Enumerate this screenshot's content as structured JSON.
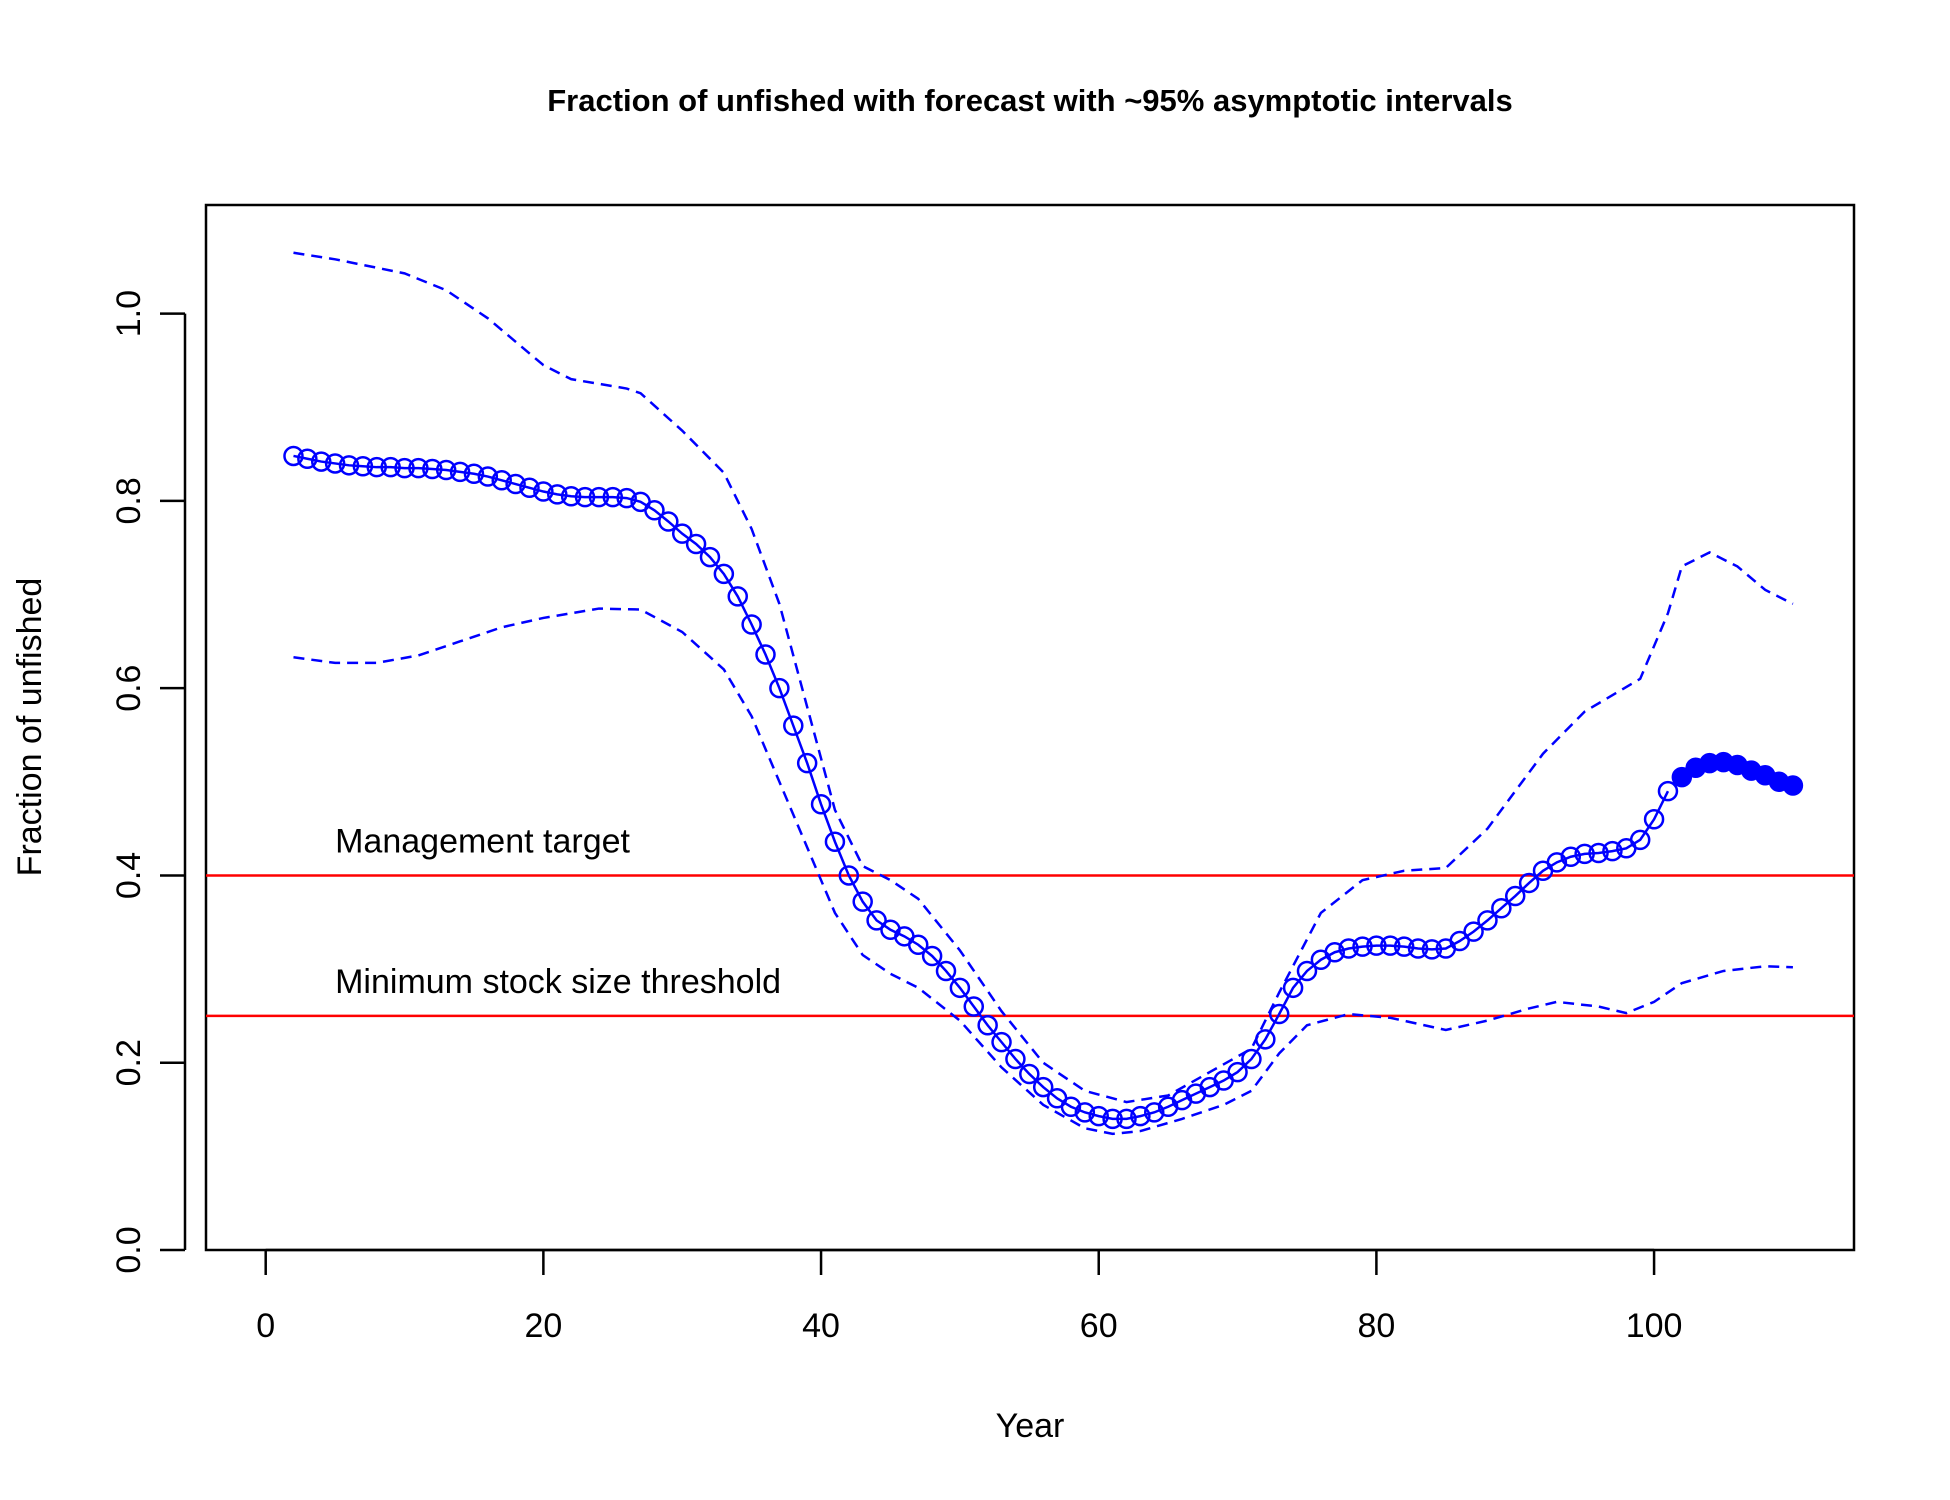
{
  "chart_data": {
    "type": "line",
    "title": "Fraction of unfished with forecast with ~95% asymptotic intervals",
    "xlabel": "Year",
    "ylabel": "Fraction of unfished",
    "xlim": [
      -4.3,
      114.4
    ],
    "ylim": [
      0,
      1.116
    ],
    "xticks": [
      0,
      20,
      40,
      60,
      80,
      100
    ],
    "yticks": [
      {
        "value": 0,
        "label": "0.0"
      },
      0.2,
      0.4,
      0.6,
      0.8,
      {
        "value": 1,
        "label": "1.0"
      }
    ],
    "series": [
      {
        "color": "#0000ff",
        "line": "solid",
        "marker": "open",
        "x": [
          2,
          3,
          4,
          5,
          6,
          7,
          8,
          9,
          10,
          11,
          12,
          13,
          14,
          15,
          16,
          17,
          18,
          19,
          20,
          21,
          22,
          23,
          24,
          25,
          26,
          27,
          28,
          29,
          30,
          31,
          32,
          33,
          34,
          35,
          36,
          37,
          38,
          39,
          40,
          41,
          42,
          43,
          44,
          45,
          46,
          47,
          48,
          49,
          50,
          51,
          52,
          53,
          54,
          55,
          56,
          57,
          58,
          59,
          60,
          61,
          62,
          63,
          64,
          65,
          66,
          67,
          68,
          69,
          70,
          71,
          72,
          73,
          74,
          75,
          76,
          77,
          78,
          79,
          80,
          81,
          82,
          83,
          84,
          85,
          86,
          87,
          88,
          89,
          90,
          91,
          92,
          93,
          94,
          95,
          96,
          97,
          98,
          99,
          100,
          101
        ],
        "values": [
          0.848,
          0.845,
          0.842,
          0.84,
          0.838,
          0.837,
          0.836,
          0.836,
          0.835,
          0.835,
          0.834,
          0.833,
          0.831,
          0.829,
          0.826,
          0.822,
          0.818,
          0.814,
          0.81,
          0.807,
          0.805,
          0.804,
          0.804,
          0.804,
          0.803,
          0.799,
          0.79,
          0.778,
          0.765,
          0.754,
          0.74,
          0.722,
          0.698,
          0.668,
          0.636,
          0.6,
          0.56,
          0.52,
          0.476,
          0.436,
          0.4,
          0.372,
          0.352,
          0.342,
          0.335,
          0.326,
          0.314,
          0.298,
          0.28,
          0.26,
          0.24,
          0.222,
          0.204,
          0.188,
          0.174,
          0.162,
          0.153,
          0.147,
          0.143,
          0.14,
          0.14,
          0.143,
          0.147,
          0.153,
          0.16,
          0.167,
          0.174,
          0.181,
          0.19,
          0.204,
          0.225,
          0.252,
          0.28,
          0.298,
          0.31,
          0.318,
          0.322,
          0.324,
          0.325,
          0.325,
          0.324,
          0.322,
          0.321,
          0.322,
          0.33,
          0.34,
          0.352,
          0.365,
          0.378,
          0.392,
          0.405,
          0.414,
          0.42,
          0.423,
          0.424,
          0.426,
          0.429,
          0.438,
          0.46,
          0.49
        ]
      },
      {
        "color": "#0000ff",
        "line": "solid",
        "marker": "filled",
        "x": [
          102,
          103,
          104,
          105,
          106,
          107,
          108,
          109,
          110
        ],
        "values": [
          0.505,
          0.515,
          0.52,
          0.521,
          0.518,
          0.512,
          0.507,
          0.5,
          0.496
        ]
      },
      {
        "color": "#0000ff",
        "line": "dashed",
        "x": [
          2,
          5,
          10,
          13,
          16,
          20,
          22,
          26,
          27,
          30,
          33,
          35,
          37,
          39,
          41,
          43,
          45,
          47,
          50,
          53,
          56,
          59,
          62,
          65,
          68,
          71,
          73,
          76,
          79,
          82,
          85,
          88,
          92,
          95,
          99,
          101,
          102,
          104,
          106,
          108,
          110
        ],
        "values": [
          1.065,
          1.058,
          1.043,
          1.025,
          0.995,
          0.945,
          0.93,
          0.92,
          0.915,
          0.875,
          0.83,
          0.77,
          0.69,
          0.58,
          0.47,
          0.41,
          0.395,
          0.375,
          0.32,
          0.255,
          0.2,
          0.17,
          0.158,
          0.165,
          0.19,
          0.215,
          0.275,
          0.36,
          0.395,
          0.405,
          0.408,
          0.45,
          0.53,
          0.575,
          0.61,
          0.68,
          0.73,
          0.745,
          0.73,
          0.705,
          0.69
        ]
      },
      {
        "color": "#0000ff",
        "line": "dashed",
        "x": [
          2,
          5,
          8,
          11,
          14,
          17,
          20,
          24,
          27,
          30,
          33,
          35,
          37,
          39,
          41,
          43,
          45,
          47,
          50,
          53,
          56,
          59,
          61,
          63,
          66,
          69,
          71,
          73,
          75,
          78,
          81,
          85,
          88,
          91,
          93,
          96,
          98,
          100,
          102,
          105,
          108,
          110
        ],
        "values": [
          0.633,
          0.627,
          0.627,
          0.635,
          0.65,
          0.665,
          0.675,
          0.685,
          0.684,
          0.66,
          0.62,
          0.57,
          0.5,
          0.43,
          0.36,
          0.315,
          0.295,
          0.28,
          0.245,
          0.195,
          0.155,
          0.13,
          0.124,
          0.127,
          0.14,
          0.155,
          0.17,
          0.21,
          0.24,
          0.252,
          0.248,
          0.235,
          0.245,
          0.258,
          0.265,
          0.26,
          0.253,
          0.265,
          0.285,
          0.298,
          0.303,
          0.302
        ]
      }
    ],
    "hlines": [
      {
        "value": 0.4,
        "color": "#ff0000",
        "label": "Management target",
        "label_x": 5
      },
      {
        "value": 0.25,
        "color": "#ff0000",
        "label": "Minimum stock size threshold",
        "label_x": 5
      }
    ]
  }
}
